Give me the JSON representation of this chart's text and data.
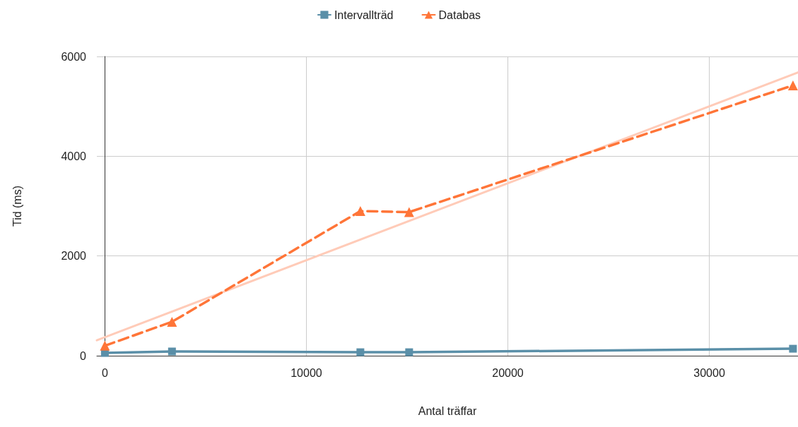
{
  "chart_data": {
    "type": "line",
    "xlabel": "Antal träffar",
    "ylabel": "Tid (ms)",
    "xlim": [
      -400,
      34400
    ],
    "xticks": [
      0,
      10000,
      20000,
      30000
    ],
    "ylim": [
      0,
      6000
    ],
    "yticks": [
      0,
      2000,
      4000,
      6000
    ],
    "grid": true,
    "legend": "top",
    "series": [
      {
        "name": "Intervallträd",
        "color": "#5a8fa8",
        "marker": "square",
        "line_style": "solid",
        "x": [
          0,
          3330,
          12680,
          15100,
          34150
        ],
        "values": [
          55,
          85,
          70,
          70,
          140
        ]
      },
      {
        "name": "Databas",
        "color": "#ff7538",
        "marker": "triangle",
        "line_style": "dashed",
        "x": [
          0,
          3330,
          12680,
          15100,
          34150
        ],
        "values": [
          200,
          680,
          2900,
          2880,
          5420
        ]
      },
      {
        "color": "#ffcbb8",
        "marker": "none",
        "line_style": "solid",
        "x": [
          -400,
          34400
        ],
        "values": [
          310,
          5680
        ]
      }
    ]
  }
}
